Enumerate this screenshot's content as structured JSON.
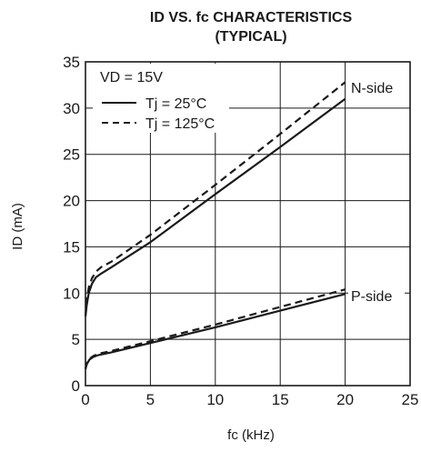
{
  "chart_data": {
    "type": "line",
    "title": "ID VS. fc CHARACTERISTICS",
    "subtitle": "(TYPICAL)",
    "xlabel": "fc (kHz)",
    "ylabel": "ID (mA)",
    "xlim": [
      0,
      25
    ],
    "ylim": [
      0,
      35
    ],
    "xticks": [
      0,
      5,
      10,
      15,
      20,
      25
    ],
    "yticks": [
      0,
      5,
      10,
      15,
      20,
      25,
      30,
      35
    ],
    "grid": true,
    "legend": {
      "position": "top-left",
      "header": "VD = 15V",
      "entries": [
        {
          "label": "Tj = 25°C",
          "style": "solid"
        },
        {
          "label": "Tj = 125°C",
          "style": "dashed"
        }
      ]
    },
    "series": [
      {
        "group": "N-side",
        "temp": "Tj = 25°C",
        "style": "solid",
        "x": [
          0,
          0.1,
          0.25,
          0.5,
          0.8,
          1.2,
          2,
          5,
          10,
          15,
          20
        ],
        "y": [
          7.5,
          8.7,
          10.0,
          11.0,
          11.7,
          12.1,
          12.8,
          15.5,
          20.7,
          25.8,
          31.0
        ]
      },
      {
        "group": "N-side",
        "temp": "Tj = 125°C",
        "style": "dashed",
        "x": [
          0,
          0.1,
          0.25,
          0.5,
          0.8,
          1.2,
          2,
          5,
          10,
          15,
          20
        ],
        "y": [
          7.5,
          9.2,
          10.6,
          11.6,
          12.3,
          12.8,
          13.4,
          16.3,
          21.7,
          27.2,
          32.8
        ]
      },
      {
        "group": "P-side",
        "temp": "Tj = 25°C",
        "style": "solid",
        "x": [
          0,
          0.1,
          0.3,
          0.6,
          1,
          2,
          5,
          10,
          15,
          20
        ],
        "y": [
          1.8,
          2.3,
          2.8,
          3.1,
          3.3,
          3.6,
          4.6,
          6.3,
          8.1,
          9.9
        ]
      },
      {
        "group": "P-side",
        "temp": "Tj = 125°C",
        "style": "dashed",
        "x": [
          0,
          0.1,
          0.3,
          0.6,
          1,
          2,
          5,
          10,
          15,
          20
        ],
        "y": [
          1.8,
          2.4,
          2.9,
          3.2,
          3.45,
          3.75,
          4.8,
          6.6,
          8.5,
          10.4
        ]
      }
    ],
    "annotations": [
      {
        "text": "N-side",
        "near_series_group": "N-side"
      },
      {
        "text": "P-side",
        "near_series_group": "P-side"
      }
    ]
  }
}
